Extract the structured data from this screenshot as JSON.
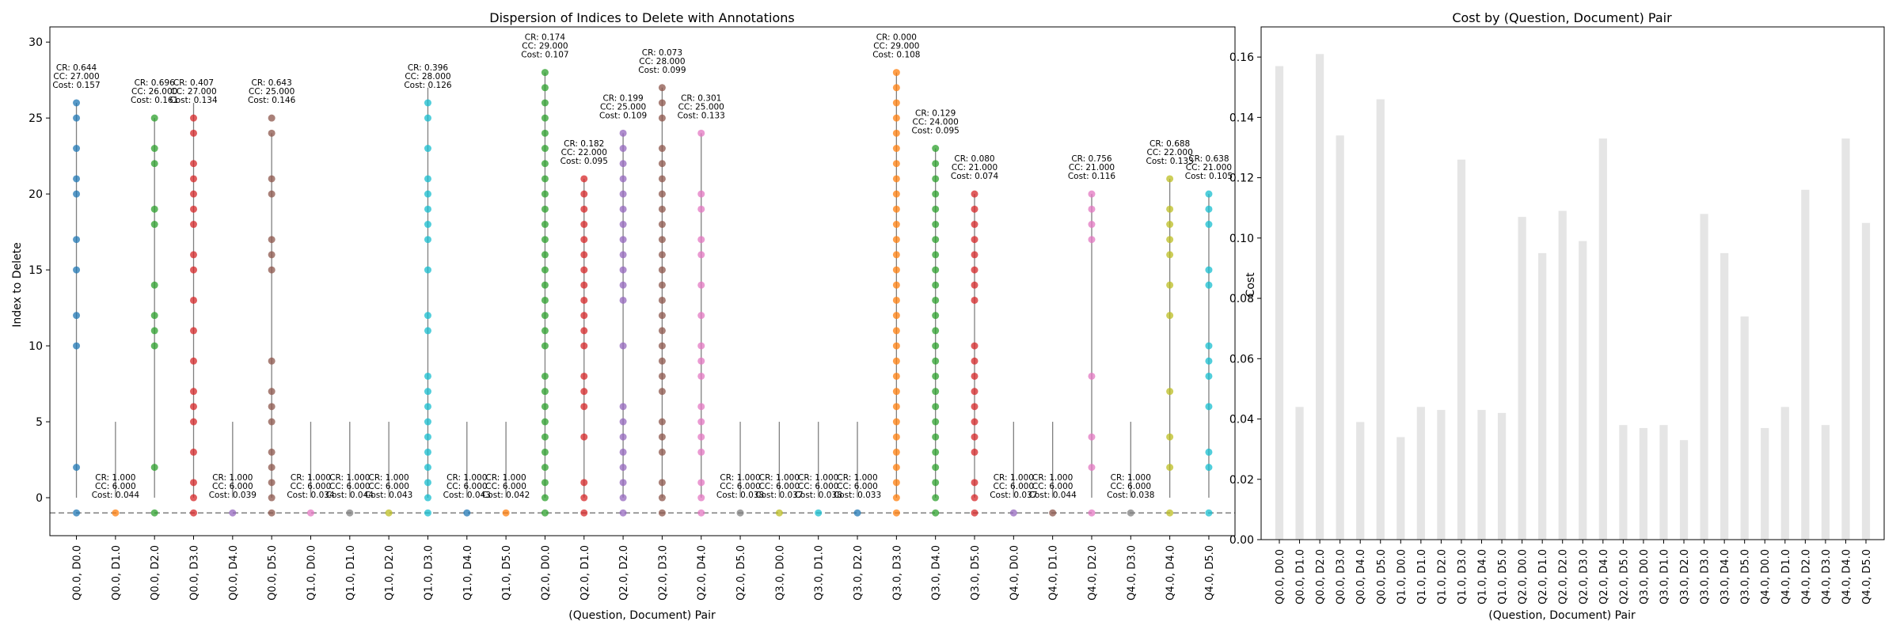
{
  "chart_data": [
    {
      "type": "scatter",
      "title": "Dispersion of Indices to Delete with Annotations",
      "xlabel": "(Question, Document) Pair",
      "ylabel": "Index to Delete",
      "ylim": [
        -2.5,
        31
      ],
      "yticks": [
        0,
        5,
        10,
        15,
        20,
        25,
        30
      ],
      "baseline_y": -1,
      "grid": false,
      "categories": [
        "Q0.0, D0.0",
        "Q0.0, D1.0",
        "Q0.0, D2.0",
        "Q0.0, D3.0",
        "Q0.0, D4.0",
        "Q0.0, D5.0",
        "Q1.0, D0.0",
        "Q1.0, D1.0",
        "Q1.0, D2.0",
        "Q1.0, D3.0",
        "Q1.0, D4.0",
        "Q1.0, D5.0",
        "Q2.0, D0.0",
        "Q2.0, D1.0",
        "Q2.0, D2.0",
        "Q2.0, D3.0",
        "Q2.0, D4.0",
        "Q2.0, D5.0",
        "Q3.0, D0.0",
        "Q3.0, D1.0",
        "Q3.0, D2.0",
        "Q3.0, D3.0",
        "Q3.0, D4.0",
        "Q3.0, D5.0",
        "Q4.0, D0.0",
        "Q4.0, D1.0",
        "Q4.0, D2.0",
        "Q4.0, D3.0",
        "Q4.0, D4.0",
        "Q4.0, D5.0"
      ],
      "colors": [
        "#1f77b4",
        "#ff7f0e",
        "#2ca02c",
        "#d62728",
        "#9467bd",
        "#8c564b",
        "#e377c2",
        "#7f7f7f",
        "#bcbd22",
        "#17becf",
        "#1f77b4",
        "#ff7f0e",
        "#2ca02c",
        "#d62728",
        "#9467bd",
        "#8c564b",
        "#e377c2",
        "#7f7f7f",
        "#bcbd22",
        "#17becf",
        "#1f77b4",
        "#ff7f0e",
        "#2ca02c",
        "#d62728",
        "#9467bd",
        "#8c564b",
        "#e377c2",
        "#7f7f7f",
        "#bcbd22",
        "#17becf"
      ],
      "cc": [
        27,
        6,
        26,
        27,
        6,
        25,
        6,
        6,
        6,
        28,
        6,
        6,
        29,
        22,
        25,
        28,
        25,
        6,
        6,
        6,
        6,
        29,
        24,
        21,
        6,
        6,
        21,
        6,
        22,
        21
      ],
      "indices": [
        [
          2,
          10,
          12,
          15,
          17,
          20,
          21,
          23,
          25,
          26
        ],
        [],
        [
          2,
          10,
          11,
          12,
          14,
          18,
          19,
          22,
          23,
          25
        ],
        [
          0,
          1,
          3,
          5,
          6,
          7,
          9,
          11,
          13,
          15,
          16,
          18,
          19,
          20,
          21,
          22,
          24,
          25
        ],
        [],
        [
          0,
          1,
          2,
          3,
          5,
          6,
          7,
          9,
          15,
          16,
          17,
          20,
          21,
          24,
          25
        ],
        [],
        [],
        [],
        [
          0,
          1,
          2,
          3,
          4,
          5,
          6,
          7,
          8,
          11,
          12,
          15,
          17,
          18,
          19,
          20,
          21,
          23,
          25,
          26
        ],
        [],
        [],
        [
          0,
          1,
          2,
          3,
          4,
          5,
          6,
          7,
          8,
          10,
          11,
          12,
          13,
          14,
          15,
          16,
          17,
          18,
          19,
          20,
          21,
          22,
          23,
          24,
          25,
          26,
          27,
          28
        ],
        [
          0,
          1,
          4,
          6,
          7,
          8,
          10,
          11,
          12,
          13,
          14,
          15,
          16,
          17,
          18,
          19,
          20,
          21
        ],
        [
          0,
          1,
          2,
          3,
          4,
          5,
          6,
          10,
          13,
          14,
          15,
          16,
          17,
          18,
          19,
          20,
          21,
          22,
          23,
          24
        ],
        [
          0,
          1,
          3,
          4,
          5,
          7,
          8,
          9,
          10,
          11,
          12,
          13,
          14,
          15,
          16,
          17,
          18,
          19,
          20,
          21,
          22,
          23,
          25,
          26,
          27
        ],
        [
          0,
          1,
          3,
          4,
          5,
          6,
          8,
          9,
          10,
          12,
          14,
          16,
          17,
          19,
          20,
          24
        ],
        [],
        [],
        [],
        [],
        [
          0,
          1,
          2,
          3,
          4,
          5,
          6,
          7,
          8,
          9,
          10,
          11,
          12,
          13,
          14,
          15,
          16,
          17,
          18,
          19,
          20,
          21,
          22,
          23,
          24,
          25,
          26,
          27,
          28
        ],
        [
          0,
          1,
          2,
          3,
          4,
          5,
          6,
          7,
          8,
          9,
          10,
          11,
          12,
          13,
          14,
          15,
          16,
          17,
          18,
          19,
          20,
          21,
          22,
          23
        ],
        [
          0,
          1,
          3,
          4,
          5,
          6,
          7,
          8,
          9,
          10,
          13,
          14,
          15,
          16,
          17,
          18,
          19,
          20
        ],
        [],
        [],
        [
          2,
          4,
          8,
          17,
          18,
          19,
          20
        ],
        [],
        [
          2,
          4,
          7,
          12,
          14,
          16,
          17,
          18,
          19,
          21
        ],
        [
          2,
          3,
          6,
          8,
          9,
          10,
          14,
          15,
          18,
          19,
          20
        ]
      ],
      "annotations": [
        [
          "CR: 0.644",
          "CC: 27.000",
          "Cost: 0.157"
        ],
        [
          "CR: 1.000",
          "CC: 6.000",
          "Cost: 0.044"
        ],
        [
          "CR: 0.696",
          "CC: 26.000",
          "Cost: 0.161"
        ],
        [
          "CR: 0.407",
          "CC: 27.000",
          "Cost: 0.134"
        ],
        [
          "CR: 1.000",
          "CC: 6.000",
          "Cost: 0.039"
        ],
        [
          "CR: 0.643",
          "CC: 25.000",
          "Cost: 0.146"
        ],
        [
          "CR: 1.000",
          "CC: 6.000",
          "Cost: 0.034"
        ],
        [
          "CR: 1.000",
          "CC: 6.000",
          "Cost: 0.044"
        ],
        [
          "CR: 1.000",
          "CC: 6.000",
          "Cost: 0.043"
        ],
        [
          "CR: 0.396",
          "CC: 28.000",
          "Cost: 0.126"
        ],
        [
          "CR: 1.000",
          "CC: 6.000",
          "Cost: 0.043"
        ],
        [
          "CR: 1.000",
          "CC: 6.000",
          "Cost: 0.042"
        ],
        [
          "CR: 0.174",
          "CC: 29.000",
          "Cost: 0.107"
        ],
        [
          "CR: 0.182",
          "CC: 22.000",
          "Cost: 0.095"
        ],
        [
          "CR: 0.199",
          "CC: 25.000",
          "Cost: 0.109"
        ],
        [
          "CR: 0.073",
          "CC: 28.000",
          "Cost: 0.099"
        ],
        [
          "CR: 0.301",
          "CC: 25.000",
          "Cost: 0.133"
        ],
        [
          "CR: 1.000",
          "CC: 6.000",
          "Cost: 0.038"
        ],
        [
          "CR: 1.000",
          "CC: 6.000",
          "Cost: 0.037"
        ],
        [
          "CR: 1.000",
          "CC: 6.000",
          "Cost: 0.038"
        ],
        [
          "CR: 1.000",
          "CC: 6.000",
          "Cost: 0.033"
        ],
        [
          "CR: 0.000",
          "CC: 29.000",
          "Cost: 0.108"
        ],
        [
          "CR: 0.129",
          "CC: 24.000",
          "Cost: 0.095"
        ],
        [
          "CR: 0.080",
          "CC: 21.000",
          "Cost: 0.074"
        ],
        [
          "CR: 1.000",
          "CC: 6.000",
          "Cost: 0.037"
        ],
        [
          "CR: 1.000",
          "CC: 6.000",
          "Cost: 0.044"
        ],
        [
          "CR: 0.756",
          "CC: 21.000",
          "Cost: 0.116"
        ],
        [
          "CR: 1.000",
          "CC: 6.000",
          "Cost: 0.038"
        ],
        [
          "CR: 0.688",
          "CC: 22.000",
          "Cost: 0.133"
        ],
        [
          "CR: 0.638",
          "CC: 21.000",
          "Cost: 0.105"
        ]
      ]
    },
    {
      "type": "bar",
      "title": "Cost by (Question, Document) Pair",
      "xlabel": "(Question, Document) Pair",
      "ylabel": "Cost",
      "ylim": [
        0,
        0.17
      ],
      "yticks": [
        0.0,
        0.02,
        0.04,
        0.06,
        0.08,
        0.1,
        0.12,
        0.14,
        0.16
      ],
      "ytick_labels": [
        "0.00",
        "0.02",
        "0.04",
        "0.06",
        "0.08",
        "0.10",
        "0.12",
        "0.14",
        "0.16"
      ],
      "bar_color": "#e5e5e5",
      "categories": [
        "Q0.0, D0.0",
        "Q0.0, D1.0",
        "Q0.0, D2.0",
        "Q0.0, D3.0",
        "Q0.0, D4.0",
        "Q0.0, D5.0",
        "Q1.0, D0.0",
        "Q1.0, D1.0",
        "Q1.0, D2.0",
        "Q1.0, D3.0",
        "Q1.0, D4.0",
        "Q1.0, D5.0",
        "Q2.0, D0.0",
        "Q2.0, D1.0",
        "Q2.0, D2.0",
        "Q2.0, D3.0",
        "Q2.0, D4.0",
        "Q2.0, D5.0",
        "Q3.0, D0.0",
        "Q3.0, D1.0",
        "Q3.0, D2.0",
        "Q3.0, D3.0",
        "Q3.0, D4.0",
        "Q3.0, D5.0",
        "Q4.0, D0.0",
        "Q4.0, D1.0",
        "Q4.0, D2.0",
        "Q4.0, D3.0",
        "Q4.0, D4.0",
        "Q4.0, D5.0"
      ],
      "values": [
        0.157,
        0.044,
        0.161,
        0.134,
        0.039,
        0.146,
        0.034,
        0.044,
        0.043,
        0.126,
        0.043,
        0.042,
        0.107,
        0.095,
        0.109,
        0.099,
        0.133,
        0.038,
        0.037,
        0.038,
        0.033,
        0.108,
        0.095,
        0.074,
        0.037,
        0.044,
        0.116,
        0.038,
        0.133,
        0.105
      ]
    }
  ]
}
